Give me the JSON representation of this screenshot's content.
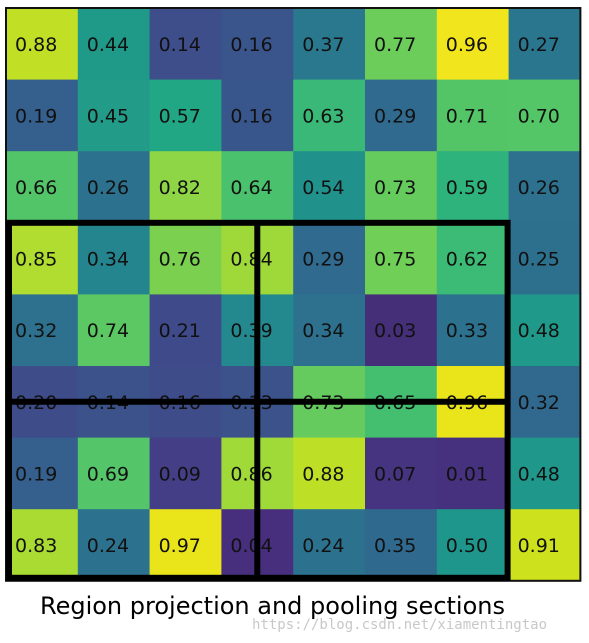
{
  "grid": {
    "rows": 8,
    "cols": 8,
    "values": [
      [
        "0.88",
        "0.44",
        "0.14",
        "0.16",
        "0.37",
        "0.77",
        "0.96",
        "0.27"
      ],
      [
        "0.19",
        "0.45",
        "0.57",
        "0.16",
        "0.63",
        "0.29",
        "0.71",
        "0.70"
      ],
      [
        "0.66",
        "0.26",
        "0.82",
        "0.64",
        "0.54",
        "0.73",
        "0.59",
        "0.26"
      ],
      [
        "0.85",
        "0.34",
        "0.76",
        "0.84",
        "0.29",
        "0.75",
        "0.62",
        "0.25"
      ],
      [
        "0.32",
        "0.74",
        "0.21",
        "0.39",
        "0.34",
        "0.03",
        "0.33",
        "0.48"
      ],
      [
        "0.20",
        "0.14",
        "0.16",
        "0.13",
        "0.73",
        "0.65",
        "0.96",
        "0.32"
      ],
      [
        "0.19",
        "0.69",
        "0.09",
        "0.86",
        "0.88",
        "0.07",
        "0.01",
        "0.48"
      ],
      [
        "0.83",
        "0.24",
        "0.97",
        "0.04",
        "0.24",
        "0.35",
        "0.50",
        "0.91"
      ]
    ],
    "colors": [
      [
        "#c1df24",
        "#1f9988",
        "#3d4e8a",
        "#3a548c",
        "#2a788e",
        "#6ccd5a",
        "#f1e51d",
        "#2a768e"
      ],
      [
        "#355f8d",
        "#229b88",
        "#22a785",
        "#39568c",
        "#39b877",
        "#306a8e",
        "#54c567",
        "#55c667"
      ],
      [
        "#52c569",
        "#2c718e",
        "#8ed645",
        "#4ac16d",
        "#21918c",
        "#66cb5d",
        "#2eb37c",
        "#2d718e"
      ],
      [
        "#b0dd2f",
        "#25858e",
        "#7bd04f",
        "#9fd939",
        "#306a8e",
        "#70cf57",
        "#3bbb75",
        "#2d708e"
      ],
      [
        "#2d718e",
        "#5cc863",
        "#3e4a89",
        "#23898e",
        "#2d718e",
        "#452f79",
        "#2c718e",
        "#1f998a"
      ],
      [
        "#3e4c8a",
        "#3b528b",
        "#3e4c8a",
        "#3b528b",
        "#65cb5e",
        "#44bf70",
        "#eae51a",
        "#31688e"
      ],
      [
        "#355f8d",
        "#54c568",
        "#433e85",
        "#a0da39",
        "#bddf26",
        "#463480",
        "#46317e",
        "#1f978b"
      ],
      [
        "#a9db33",
        "#2c728e",
        "#eae51a",
        "#472f7d",
        "#2c728e",
        "#30698e",
        "#1f968b",
        "#cde11d"
      ]
    ],
    "roi_box": {
      "col_start": 0,
      "row_start": 3,
      "col_end": 7,
      "row_end": 8
    },
    "pool_split": {
      "col": 3.5,
      "row": 5.5
    }
  },
  "caption": "Region projection and pooling sections",
  "watermark": "https://blog.csdn.net/xiamentingtao"
}
